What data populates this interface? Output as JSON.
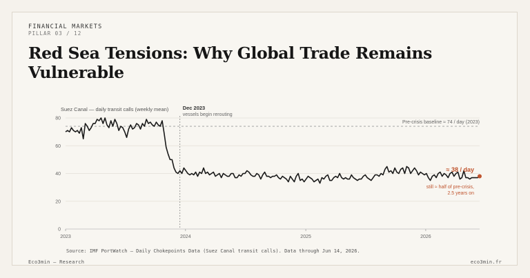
{
  "header": {
    "kicker": "FINANCIAL MARKETS",
    "pillar": "PILLAR 03 / 12",
    "title": "Red Sea Tensions: Why Global Trade Remains Vulnerable"
  },
  "chart_data": {
    "type": "line",
    "title": "",
    "ylabel": "Suez Canal — daily transit calls (weekly mean)",
    "xlabel": "",
    "xlim": [
      "2023-01-01",
      "2026-06-14"
    ],
    "ylim": [
      0,
      80
    ],
    "yticks": [
      0,
      20,
      40,
      60,
      80
    ],
    "xticks": [
      {
        "date": "2023-01-01",
        "label": "2023"
      },
      {
        "date": "2024-01-01",
        "label": "2024"
      },
      {
        "date": "2025-01-01",
        "label": "2025"
      },
      {
        "date": "2026-01-01",
        "label": "2026"
      }
    ],
    "grid": true,
    "series": [
      {
        "name": "",
        "color": "#1a1a1a",
        "values": [
          70,
          71,
          70,
          73,
          71,
          70,
          71,
          69,
          73,
          65,
          76,
          74,
          71,
          73,
          76,
          76,
          79,
          78,
          80,
          76,
          80,
          75,
          73,
          78,
          74,
          79,
          76,
          71,
          74,
          73,
          70,
          66,
          72,
          75,
          72,
          73,
          76,
          75,
          72,
          76,
          74,
          79,
          76,
          77,
          75,
          74,
          77,
          75,
          74,
          78,
          69,
          59,
          54,
          50,
          50,
          44,
          41,
          40,
          42,
          40,
          44,
          42,
          40,
          39,
          40,
          39,
          41,
          38,
          41,
          40,
          44,
          40,
          41,
          39,
          40,
          41,
          38,
          39,
          40,
          37,
          40,
          39,
          38,
          38,
          40,
          40,
          37,
          37,
          39,
          38,
          40,
          40,
          42,
          41,
          39,
          38,
          38,
          40,
          39,
          36,
          39,
          41,
          38,
          38,
          37,
          38,
          38,
          39,
          37,
          36,
          38,
          37,
          36,
          34,
          38,
          36,
          34,
          38,
          40,
          35,
          36,
          34,
          36,
          38,
          37,
          36,
          34,
          35,
          36,
          33,
          37,
          36,
          38,
          39,
          35,
          35,
          37,
          38,
          37,
          40,
          37,
          36,
          37,
          36,
          36,
          39,
          37,
          36,
          35,
          36,
          36,
          38,
          39,
          37,
          36,
          35,
          37,
          39,
          39,
          38,
          40,
          39,
          43,
          45,
          41,
          42,
          40,
          44,
          41,
          40,
          43,
          44,
          40,
          45,
          44,
          40,
          42,
          44,
          42,
          39,
          41,
          40,
          39,
          40,
          37,
          35,
          38,
          39,
          37,
          40,
          41,
          38,
          40,
          39,
          37,
          40,
          41,
          38,
          40,
          41,
          36,
          37,
          42,
          37,
          37,
          36,
          37,
          37,
          37,
          37,
          38
        ]
      }
    ],
    "baseline": {
      "value": 74,
      "label": "Pre-crisis baseline ≈ 74 / day (2023)"
    },
    "event": {
      "date": "2023-12-15",
      "label": "Dec 2023",
      "sublabel": "vessels begin rerouting"
    },
    "endpoint": {
      "value": 38,
      "label": "≈ 38 / day",
      "note_line1": "still ≈ half of pre-crisis,",
      "note_line2": "2.5 years on",
      "color": "#c0552f"
    }
  },
  "footer": {
    "source": "Source: IMF PortWatch — Daily Chokepoints Data (Suez Canal transit calls). Data through Jun 14, 2026.",
    "left": "Eco3min — Research",
    "right": "eco3min.fr"
  }
}
